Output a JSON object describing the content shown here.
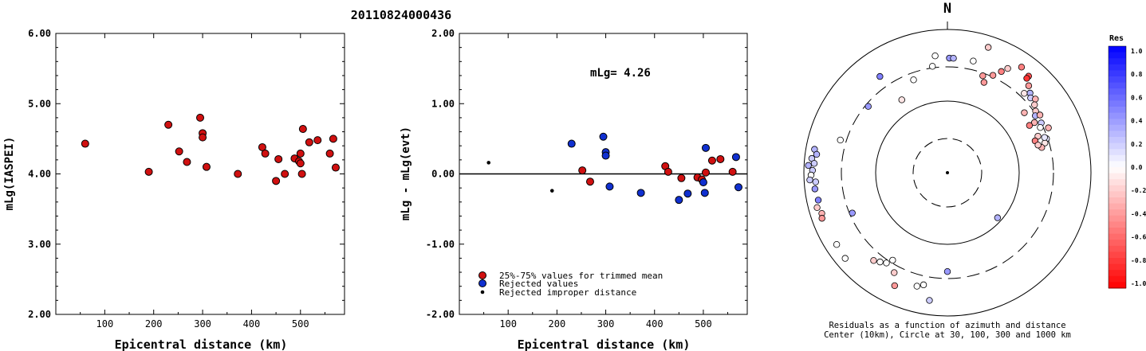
{
  "event_id": "20110824000436",
  "chart_data": [
    {
      "type": "scatter",
      "xlabel": "Epicentral distance (km)",
      "ylabel": "mLg(IASPEI)",
      "xlim": [
        0,
        590
      ],
      "ylim": [
        2.0,
        6.0
      ],
      "xticks": [
        "100",
        "200",
        "300",
        "400",
        "500"
      ],
      "xtick_values": [
        100,
        200,
        300,
        400,
        500
      ],
      "yticks": [
        "2.00",
        "3.00",
        "4.00",
        "5.00",
        "6.00"
      ],
      "ytick_values": [
        2,
        3,
        4,
        5,
        6
      ],
      "color": "#d01010",
      "points": [
        [
          60,
          4.43
        ],
        [
          190,
          4.03
        ],
        [
          230,
          4.7
        ],
        [
          252,
          4.32
        ],
        [
          268,
          4.17
        ],
        [
          295,
          4.8
        ],
        [
          300,
          4.58
        ],
        [
          300,
          4.52
        ],
        [
          308,
          4.1
        ],
        [
          372,
          4.0
        ],
        [
          422,
          4.38
        ],
        [
          428,
          4.29
        ],
        [
          450,
          3.9
        ],
        [
          455,
          4.21
        ],
        [
          468,
          4.0
        ],
        [
          488,
          4.22
        ],
        [
          497,
          4.18
        ],
        [
          500,
          4.15
        ],
        [
          500,
          4.29
        ],
        [
          503,
          4.0
        ],
        [
          505,
          4.64
        ],
        [
          518,
          4.45
        ],
        [
          535,
          4.48
        ],
        [
          560,
          4.29
        ],
        [
          567,
          4.5
        ],
        [
          572,
          4.09
        ]
      ]
    },
    {
      "type": "scatter",
      "xlabel": "Epicentral distance (km)",
      "ylabel": "mLg - mLg(evt)",
      "xlim": [
        0,
        590
      ],
      "ylim": [
        -2.0,
        2.0
      ],
      "xticks": [
        "100",
        "200",
        "300",
        "400",
        "500"
      ],
      "xtick_values": [
        100,
        200,
        300,
        400,
        500
      ],
      "yticks": [
        "-2.00",
        "-1.00",
        "0.00",
        "1.00",
        "2.00"
      ],
      "ytick_values": [
        -2,
        -1,
        0,
        1,
        2
      ],
      "annotation": "mLg= 4.26",
      "legend": [
        {
          "label": "25%-75% values for trimmed mean",
          "color": "#d01010"
        },
        {
          "label": "Rejected values",
          "color": "#1030d0"
        },
        {
          "label": "Rejected improper distance",
          "color": "#000000"
        }
      ],
      "red_points": [
        [
          252,
          0.05
        ],
        [
          268,
          -0.11
        ],
        [
          422,
          0.11
        ],
        [
          428,
          0.03
        ],
        [
          455,
          -0.06
        ],
        [
          488,
          -0.05
        ],
        [
          497,
          -0.08
        ],
        [
          505,
          0.02
        ],
        [
          518,
          0.19
        ],
        [
          535,
          0.21
        ],
        [
          560,
          0.03
        ]
      ],
      "blue_points": [
        [
          230,
          0.43
        ],
        [
          295,
          0.53
        ],
        [
          300,
          0.31
        ],
        [
          300,
          0.26
        ],
        [
          308,
          -0.18
        ],
        [
          372,
          -0.27
        ],
        [
          450,
          -0.37
        ],
        [
          468,
          -0.28
        ],
        [
          500,
          -0.12
        ],
        [
          503,
          -0.27
        ],
        [
          505,
          0.37
        ],
        [
          567,
          0.24
        ],
        [
          572,
          -0.19
        ]
      ],
      "black_points": [
        [
          60,
          0.16
        ],
        [
          190,
          -0.24
        ]
      ]
    },
    {
      "type": "polar-scatter",
      "north_label": "N",
      "caption_line1": "Residuals as a function of azimuth and distance",
      "caption_line2": "Center (10km), Circle at 30, 100, 300 and 1000 km",
      "colorbar_title": "Res",
      "colorbar_ticks": [
        "1.0",
        "0.8",
        "0.6",
        "0.4",
        "0.2",
        "0.0",
        "-0.2",
        "-0.4",
        "-0.6",
        "-0.8",
        "-1.0"
      ],
      "points": [
        [
          18,
          0.92,
          -0.2
        ],
        [
          35,
          0.9,
          -0.5
        ],
        [
          40,
          0.88,
          -0.7
        ],
        [
          40,
          0.86,
          -0.8
        ],
        [
          43,
          0.83,
          -0.4
        ],
        [
          46,
          0.8,
          0.3
        ],
        [
          48,
          0.78,
          0.2
        ],
        [
          44,
          0.77,
          -0.1
        ],
        [
          50,
          0.8,
          -0.3
        ],
        [
          52,
          0.77,
          -0.2
        ],
        [
          55,
          0.75,
          -0.2
        ],
        [
          57,
          0.73,
          0.3
        ],
        [
          58,
          0.76,
          -0.3
        ],
        [
          60,
          0.7,
          -0.3
        ],
        [
          60,
          0.66,
          -0.5
        ],
        [
          62,
          0.74,
          0.2
        ],
        [
          64,
          0.72,
          0.0
        ],
        [
          66,
          0.77,
          -0.3
        ],
        [
          68,
          0.68,
          -0.2
        ],
        [
          70,
          0.65,
          -0.5
        ],
        [
          71,
          0.73,
          0.1
        ],
        [
          73,
          0.71,
          -0.1
        ],
        [
          75,
          0.68,
          -0.3
        ],
        [
          30,
          0.84,
          -0.2
        ],
        [
          28,
          0.8,
          -0.5
        ],
        [
          25,
          0.75,
          -0.4
        ],
        [
          20,
          0.72,
          -0.4
        ],
        [
          22,
          0.68,
          -0.4
        ],
        [
          13,
          0.8,
          0.0
        ],
        [
          1,
          0.8,
          0.4
        ],
        [
          3,
          0.8,
          0.3
        ],
        [
          -6,
          0.82,
          0.0
        ],
        [
          -8,
          0.75,
          0.0
        ],
        [
          -20,
          0.69,
          0.0
        ],
        [
          -35,
          0.82,
          0.5
        ],
        [
          -32,
          0.6,
          -0.1
        ],
        [
          -50,
          0.72,
          0.4
        ],
        [
          -73,
          0.78,
          0.0
        ],
        [
          -80,
          0.94,
          0.3
        ],
        [
          -82,
          0.92,
          0.3
        ],
        [
          -84,
          0.95,
          0.2
        ],
        [
          -86,
          0.93,
          0.2
        ],
        [
          -87,
          0.97,
          0.3
        ],
        [
          -89,
          0.94,
          0.2
        ],
        [
          -91,
          0.95,
          0.0
        ],
        [
          -93,
          0.96,
          0.2
        ],
        [
          -94,
          0.92,
          0.2
        ],
        [
          -97,
          0.93,
          0.4
        ],
        [
          -102,
          0.92,
          0.5
        ],
        [
          -105,
          0.94,
          -0.2
        ],
        [
          -108,
          0.92,
          -0.3
        ],
        [
          -110,
          0.93,
          -0.4
        ],
        [
          -113,
          0.72,
          0.4
        ],
        [
          -123,
          0.92,
          0.0
        ],
        [
          -130,
          0.93,
          0.0
        ],
        [
          -140,
          0.8,
          -0.2
        ],
        [
          -143,
          0.78,
          0.0
        ],
        [
          -146,
          0.76,
          0.0
        ],
        [
          -148,
          0.72,
          0.0
        ],
        [
          -152,
          0.79,
          -0.2
        ],
        [
          -155,
          0.87,
          -0.4
        ],
        [
          -165,
          0.82,
          0.0
        ],
        [
          -168,
          0.8,
          0.0
        ],
        [
          -172,
          0.9,
          0.2
        ],
        [
          180,
          0.69,
          0.4
        ],
        [
          52,
          0.68,
          -0.3
        ],
        [
          70,
          0.72,
          0.1
        ],
        [
          73,
          0.66,
          -0.2
        ],
        [
          132,
          0.47,
          0.3
        ]
      ]
    }
  ]
}
